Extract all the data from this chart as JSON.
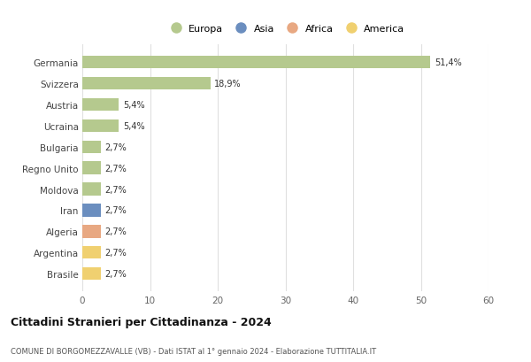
{
  "countries": [
    "Germania",
    "Svizzera",
    "Austria",
    "Ucraina",
    "Bulgaria",
    "Regno Unito",
    "Moldova",
    "Iran",
    "Algeria",
    "Argentina",
    "Brasile"
  ],
  "values": [
    51.4,
    18.9,
    5.4,
    5.4,
    2.7,
    2.7,
    2.7,
    2.7,
    2.7,
    2.7,
    2.7
  ],
  "labels": [
    "51,4%",
    "18,9%",
    "5,4%",
    "5,4%",
    "2,7%",
    "2,7%",
    "2,7%",
    "2,7%",
    "2,7%",
    "2,7%",
    "2,7%"
  ],
  "colors": [
    "#b5c98e",
    "#b5c98e",
    "#b5c98e",
    "#b5c98e",
    "#b5c98e",
    "#b5c98e",
    "#b5c98e",
    "#6b8ebf",
    "#e8a882",
    "#f0d070",
    "#f0d070"
  ],
  "legend_labels": [
    "Europa",
    "Asia",
    "Africa",
    "America"
  ],
  "legend_colors": [
    "#b5c98e",
    "#6b8ebf",
    "#e8a882",
    "#f0d070"
  ],
  "title": "Cittadini Stranieri per Cittadinanza - 2024",
  "subtitle": "COMUNE DI BORGOMEZZAVALLE (VB) - Dati ISTAT al 1° gennaio 2024 - Elaborazione TUTTITALIA.IT",
  "xlim": [
    0,
    60
  ],
  "xticks": [
    0,
    10,
    20,
    30,
    40,
    50,
    60
  ],
  "bg_color": "#ffffff",
  "grid_color": "#e0e0e0",
  "bar_height": 0.6
}
